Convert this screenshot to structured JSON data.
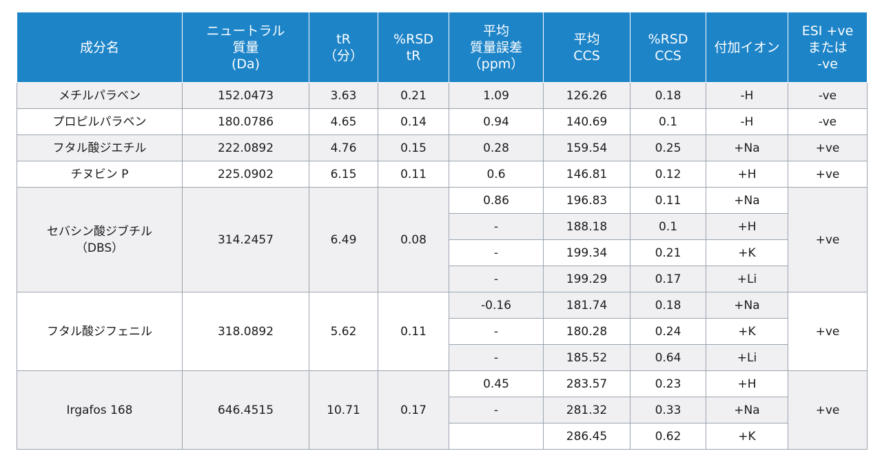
{
  "headers": [
    "成分名",
    "ニュートラル\n質量\n(Da)",
    "tR\n（分）",
    "%RSD\ntR",
    "平均\n質量誤差\n（ppm）",
    "平均\nCCS",
    "%RSD\nCCS",
    "付加イオン",
    "ESI +ve\nまたは\n-ve"
  ],
  "simple_rows": [
    {
      "name": "メチルパラベン",
      "mass": "152.0473",
      "tr": "3.63",
      "rsd_tr": "0.21",
      "err": "1.09",
      "ccs": "126.26",
      "rsd_ccs": "0.18",
      "adduct": "-H",
      "esi": "-ve"
    },
    {
      "name": "プロピルパラベン",
      "mass": "180.0786",
      "tr": "4.65",
      "rsd_tr": "0.14",
      "err": "0.94",
      "ccs": "140.69",
      "rsd_ccs": "0.1",
      "adduct": "-H",
      "esi": "-ve"
    },
    {
      "name": "フタル酸ジエチル",
      "mass": "222.0892",
      "tr": "4.76",
      "rsd_tr": "0.15",
      "err": "0.28",
      "ccs": "159.54",
      "rsd_ccs": "0.25",
      "adduct": "+Na",
      "esi": "+ve"
    },
    {
      "name": "チヌビン P",
      "mass": "225.0902",
      "tr": "6.15",
      "rsd_tr": "0.11",
      "err": "0.6",
      "ccs": "146.81",
      "rsd_ccs": "0.12",
      "adduct": "+H",
      "esi": "+ve"
    }
  ],
  "groups": [
    {
      "name": "セバシン酸ジブチル\n（DBS）",
      "mass": "314.2457",
      "tr": "6.49",
      "rsd_tr": "0.08",
      "esi": "+ve",
      "sub": [
        {
          "err": "0.86",
          "ccs": "196.83",
          "rsd_ccs": "0.11",
          "adduct": "+Na"
        },
        {
          "err": "-",
          "ccs": "188.18",
          "rsd_ccs": "0.1",
          "adduct": "+H"
        },
        {
          "err": "-",
          "ccs": "199.34",
          "rsd_ccs": "0.21",
          "adduct": "+K"
        },
        {
          "err": "-",
          "ccs": "199.29",
          "rsd_ccs": "0.17",
          "adduct": "+Li"
        }
      ]
    },
    {
      "name": "フタル酸ジフェニル",
      "mass": "318.0892",
      "tr": "5.62",
      "rsd_tr": "0.11",
      "esi": "+ve",
      "sub": [
        {
          "err": "-0.16",
          "ccs": "181.74",
          "rsd_ccs": "0.18",
          "adduct": "+Na"
        },
        {
          "err": "-",
          "ccs": "180.28",
          "rsd_ccs": "0.24",
          "adduct": "+K"
        },
        {
          "err": "-",
          "ccs": "185.52",
          "rsd_ccs": "0.64",
          "adduct": "+Li"
        }
      ]
    },
    {
      "name": "Irgafos 168",
      "mass": "646.4515",
      "tr": "10.71",
      "rsd_tr": "0.17",
      "esi": "+ve",
      "sub": [
        {
          "err": "0.45",
          "ccs": "283.57",
          "rsd_ccs": "0.23",
          "adduct": "+H"
        },
        {
          "err": "-",
          "ccs": "281.32",
          "rsd_ccs": "0.33",
          "adduct": "+Na"
        },
        {
          "err": "",
          "ccs": "286.45",
          "rsd_ccs": "0.62",
          "adduct": "+K"
        }
      ]
    }
  ]
}
